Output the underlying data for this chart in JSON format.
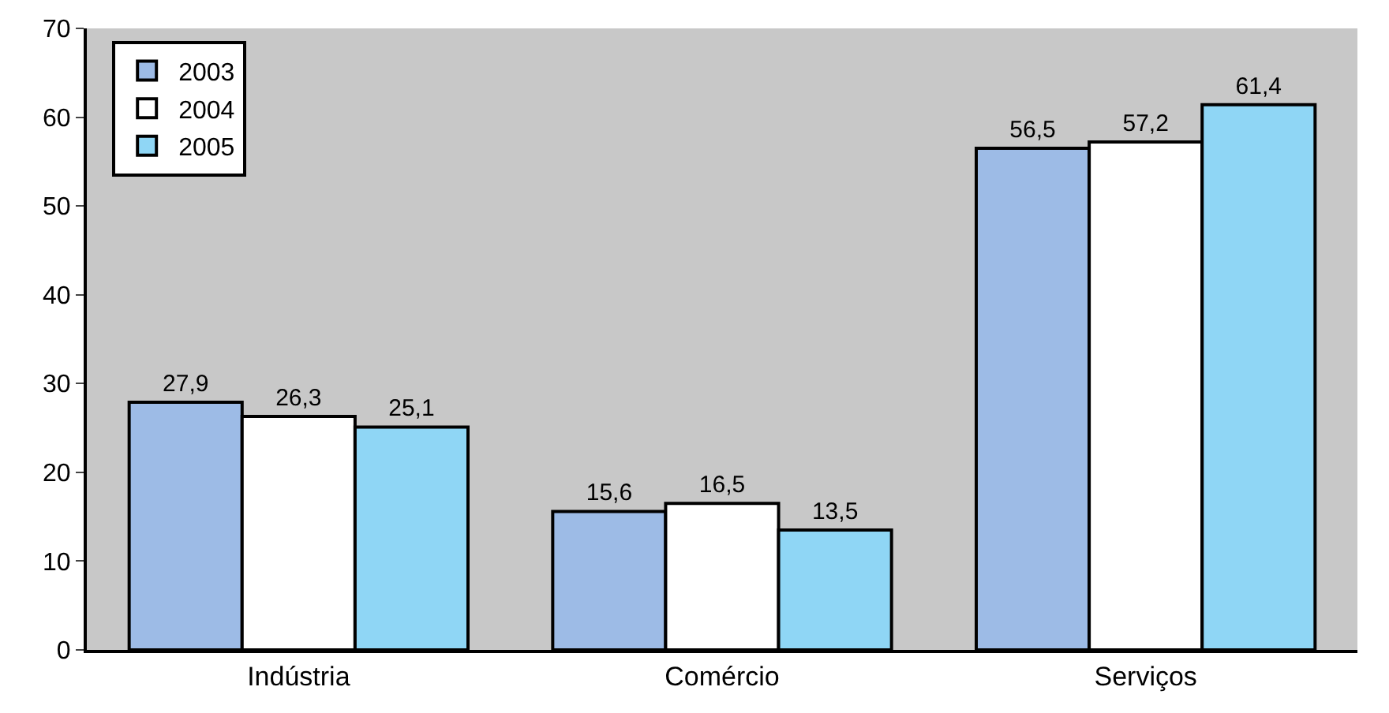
{
  "chart_data": {
    "type": "bar",
    "categories": [
      "Indústria",
      "Comércio",
      "Serviços"
    ],
    "series": [
      {
        "name": "2003",
        "color": "#9dbbe6",
        "values": [
          27.9,
          15.6,
          56.5
        ],
        "value_labels": [
          "27,9",
          "15,6",
          "56,5"
        ]
      },
      {
        "name": "2004",
        "color": "#ffffff",
        "values": [
          26.3,
          16.5,
          57.2
        ],
        "value_labels": [
          "26,3",
          "16,5",
          "57,2"
        ]
      },
      {
        "name": "2005",
        "color": "#8fd6f5",
        "values": [
          25.1,
          13.5,
          61.4
        ],
        "value_labels": [
          "25,1",
          "13,5",
          "61,4"
        ]
      }
    ],
    "ylim": [
      0,
      70
    ],
    "yticks": [
      0,
      10,
      20,
      30,
      40,
      50,
      60,
      70
    ],
    "grid": false,
    "legend": "top left"
  }
}
